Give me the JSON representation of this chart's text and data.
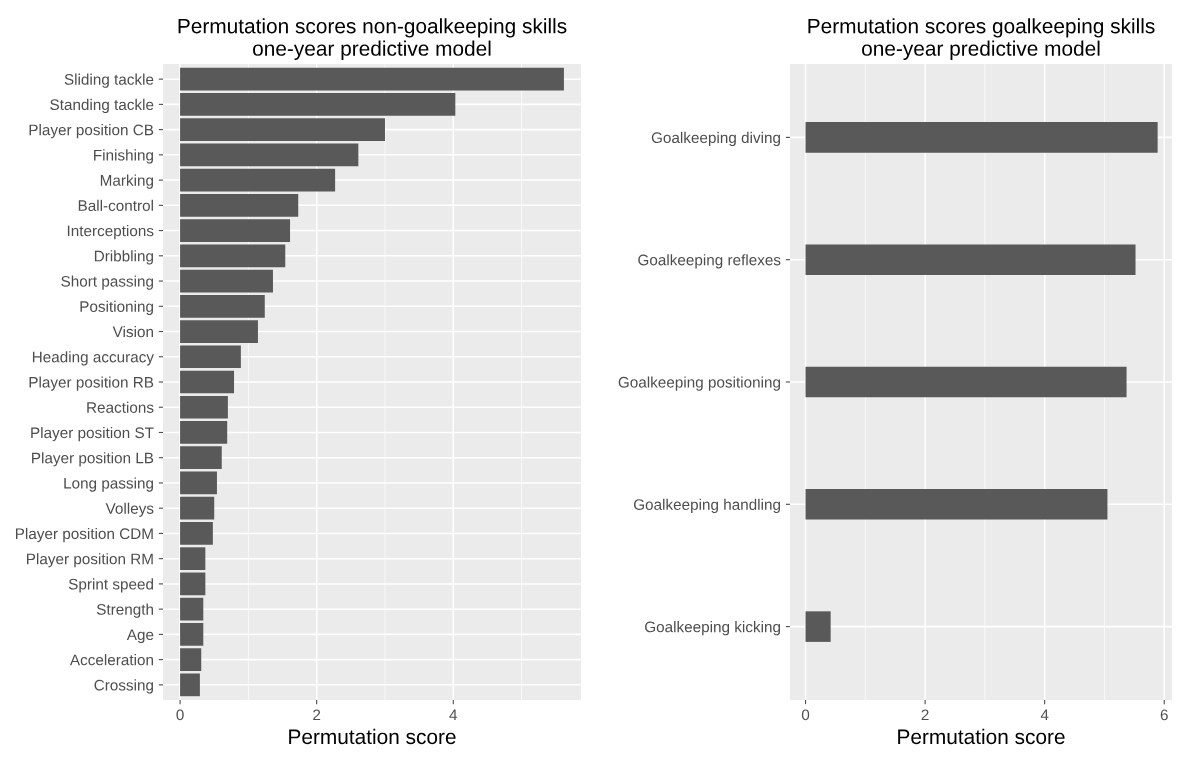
{
  "chart_data": [
    {
      "type": "bar",
      "orientation": "horizontal",
      "title": "Permutation scores non-goalkeeping skills\none-year predictive model",
      "xlabel": "Permutation score",
      "categories": [
        "Sliding tackle",
        "Standing tackle",
        "Player position CB",
        "Finishing",
        "Marking",
        "Ball-control",
        "Interceptions",
        "Dribbling",
        "Short passing",
        "Positioning",
        "Vision",
        "Heading accuracy",
        "Player position RB",
        "Reactions",
        "Player position ST",
        "Player position LB",
        "Long passing",
        "Volleys",
        "Player position CDM",
        "Player position RM",
        "Sprint speed",
        "Strength",
        "Age",
        "Acceleration",
        "Crossing"
      ],
      "values": [
        5.62,
        4.03,
        3.0,
        2.61,
        2.27,
        1.73,
        1.61,
        1.54,
        1.36,
        1.24,
        1.14,
        0.89,
        0.79,
        0.7,
        0.69,
        0.61,
        0.54,
        0.5,
        0.48,
        0.37,
        0.37,
        0.34,
        0.34,
        0.31,
        0.29
      ],
      "color": "#595959",
      "xlim": [
        -0.25,
        5.87
      ],
      "xticks": [
        0,
        2,
        4
      ],
      "grid": true
    },
    {
      "type": "bar",
      "orientation": "horizontal",
      "title": "Permutation scores goalkeeping skills\none-year predictive model",
      "xlabel": "Permutation score",
      "categories": [
        "Goalkeeping diving",
        "Goalkeeping reflexes",
        "Goalkeeping positioning",
        "Goalkeeping handling",
        "Goalkeeping kicking"
      ],
      "values": [
        5.89,
        5.52,
        5.37,
        5.05,
        0.42
      ],
      "color": "#595959",
      "xlim": [
        -0.26,
        6.13
      ],
      "xticks": [
        0,
        2,
        4,
        6
      ],
      "grid": true
    }
  ]
}
